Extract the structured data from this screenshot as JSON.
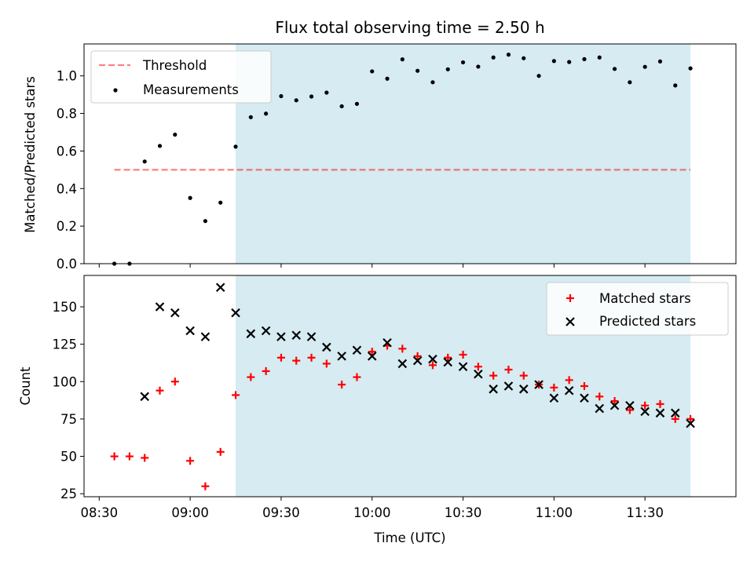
{
  "figure": {
    "title": "Flux total observing time = 2.50 h"
  },
  "colors": {
    "shade": "#add8e6",
    "threshold": "#ff0000",
    "measurements": "#000000",
    "matched": "#ff0000",
    "predicted": "#000000"
  },
  "chart_data": [
    {
      "type": "scatter",
      "ylabel": "Matched/Predicted stars",
      "xlim": [
        "08:25",
        "12:00"
      ],
      "ylim": [
        0,
        1.17
      ],
      "yticks": [
        "0.0",
        "0.2",
        "0.4",
        "0.6",
        "0.8",
        "1.0"
      ],
      "shaded_span": [
        "09:15",
        "11:45"
      ],
      "legend": {
        "position": "top-left",
        "entries": [
          "Threshold",
          "Measurements"
        ]
      },
      "threshold": {
        "name": "Threshold",
        "value": 0.5,
        "x": [
          "08:35",
          "11:45"
        ],
        "style": "dashed"
      },
      "series": [
        {
          "name": "Measurements",
          "points": [
            [
              "08:35",
              0.0
            ],
            [
              "08:40",
              0.0
            ],
            [
              "08:45",
              0.544
            ],
            [
              "08:50",
              0.627
            ],
            [
              "08:55",
              0.687
            ],
            [
              "09:00",
              0.35
            ],
            [
              "09:05",
              0.227
            ],
            [
              "09:10",
              0.325
            ],
            [
              "09:15",
              0.623
            ],
            [
              "09:20",
              0.78
            ],
            [
              "09:25",
              0.799
            ],
            [
              "09:30",
              0.892
            ],
            [
              "09:35",
              0.87
            ],
            [
              "09:40",
              0.89
            ],
            [
              "09:45",
              0.911
            ],
            [
              "09:50",
              0.838
            ],
            [
              "09:55",
              0.851
            ],
            [
              "10:00",
              1.024
            ],
            [
              "10:05",
              0.985
            ],
            [
              "10:10",
              1.088
            ],
            [
              "10:15",
              1.027
            ],
            [
              "10:20",
              0.966
            ],
            [
              "10:25",
              1.035
            ],
            [
              "10:30",
              1.072
            ],
            [
              "10:35",
              1.049
            ],
            [
              "10:40",
              1.098
            ],
            [
              "10:45",
              1.113
            ],
            [
              "10:50",
              1.094
            ],
            [
              "10:55",
              1.0
            ],
            [
              "11:00",
              1.079
            ],
            [
              "11:05",
              1.074
            ],
            [
              "11:10",
              1.089
            ],
            [
              "11:15",
              1.098
            ],
            [
              "11:20",
              1.037
            ],
            [
              "11:25",
              0.966
            ],
            [
              "11:30",
              1.048
            ],
            [
              "11:35",
              1.077
            ],
            [
              "11:40",
              0.949
            ],
            [
              "11:45",
              1.04
            ]
          ]
        }
      ]
    },
    {
      "type": "scatter",
      "xlabel": "Time (UTC)",
      "ylabel": "Count",
      "xlim": [
        "08:25",
        "12:00"
      ],
      "ylim": [
        23,
        171
      ],
      "xticks": [
        "08:30",
        "09:00",
        "09:30",
        "10:00",
        "10:30",
        "11:00",
        "11:30"
      ],
      "yticks": [
        "25",
        "50",
        "75",
        "100",
        "125",
        "150"
      ],
      "shaded_span": [
        "09:15",
        "11:45"
      ],
      "legend": {
        "position": "top-right",
        "entries": [
          "Matched stars",
          "Predicted stars"
        ]
      },
      "series": [
        {
          "name": "Matched stars",
          "marker": "plus",
          "points": [
            [
              "08:35",
              50
            ],
            [
              "08:40",
              50
            ],
            [
              "08:45",
              49
            ],
            [
              "08:50",
              94
            ],
            [
              "08:55",
              100
            ],
            [
              "09:00",
              47
            ],
            [
              "09:05",
              30
            ],
            [
              "09:10",
              53
            ],
            [
              "09:15",
              91
            ],
            [
              "09:20",
              103
            ],
            [
              "09:25",
              107
            ],
            [
              "09:30",
              116
            ],
            [
              "09:35",
              114
            ],
            [
              "09:40",
              116
            ],
            [
              "09:45",
              112
            ],
            [
              "09:50",
              98
            ],
            [
              "09:55",
              103
            ],
            [
              "10:00",
              120
            ],
            [
              "10:05",
              124
            ],
            [
              "10:10",
              122
            ],
            [
              "10:15",
              117
            ],
            [
              "10:20",
              111
            ],
            [
              "10:25",
              116
            ],
            [
              "10:30",
              118
            ],
            [
              "10:35",
              110
            ],
            [
              "10:40",
              104
            ],
            [
              "10:45",
              108
            ],
            [
              "10:50",
              104
            ],
            [
              "10:55",
              98
            ],
            [
              "11:00",
              96
            ],
            [
              "11:05",
              101
            ],
            [
              "11:10",
              97
            ],
            [
              "11:15",
              90
            ],
            [
              "11:20",
              87
            ],
            [
              "11:25",
              81
            ],
            [
              "11:30",
              84
            ],
            [
              "11:35",
              85
            ],
            [
              "11:40",
              75
            ],
            [
              "11:45",
              75
            ]
          ]
        },
        {
          "name": "Predicted stars",
          "marker": "x",
          "points": [
            [
              "08:45",
              90
            ],
            [
              "08:50",
              150
            ],
            [
              "08:55",
              146
            ],
            [
              "09:00",
              134
            ],
            [
              "09:05",
              130
            ],
            [
              "09:10",
              163
            ],
            [
              "09:15",
              146
            ],
            [
              "09:20",
              132
            ],
            [
              "09:25",
              134
            ],
            [
              "09:30",
              130
            ],
            [
              "09:35",
              131
            ],
            [
              "09:40",
              130
            ],
            [
              "09:45",
              123
            ],
            [
              "09:50",
              117
            ],
            [
              "09:55",
              121
            ],
            [
              "10:00",
              117
            ],
            [
              "10:05",
              126
            ],
            [
              "10:10",
              112
            ],
            [
              "10:15",
              114
            ],
            [
              "10:20",
              115
            ],
            [
              "10:25",
              113
            ],
            [
              "10:30",
              110
            ],
            [
              "10:35",
              105
            ],
            [
              "10:40",
              95
            ],
            [
              "10:45",
              97
            ],
            [
              "10:50",
              95
            ],
            [
              "10:55",
              98
            ],
            [
              "11:00",
              89
            ],
            [
              "11:05",
              94
            ],
            [
              "11:10",
              89
            ],
            [
              "11:15",
              82
            ],
            [
              "11:20",
              84
            ],
            [
              "11:25",
              84
            ],
            [
              "11:30",
              80
            ],
            [
              "11:35",
              79
            ],
            [
              "11:40",
              79
            ],
            [
              "11:45",
              72
            ]
          ]
        }
      ]
    }
  ]
}
